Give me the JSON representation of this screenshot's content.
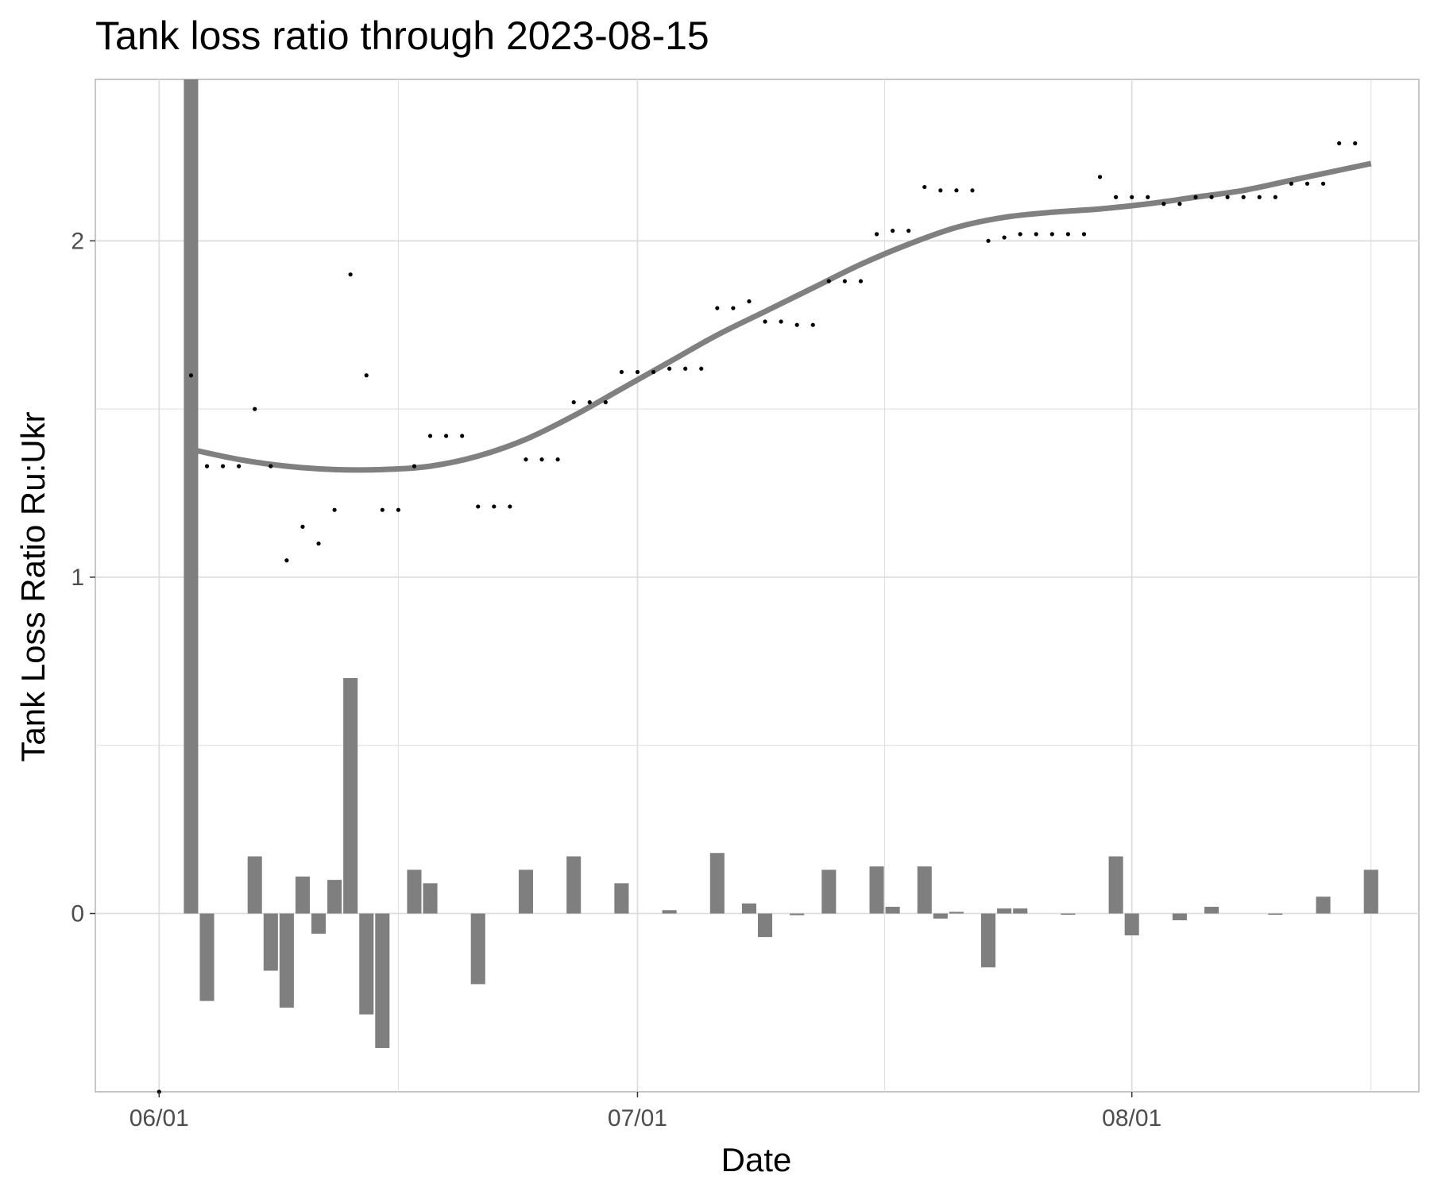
{
  "chart_data": {
    "type": "bar",
    "title": "Tank loss ratio through 2023-08-15",
    "xlabel": "Date",
    "ylabel": "Tank Loss Ratio Ru:Ukr",
    "x_axis": {
      "type": "date",
      "range": [
        "2023-05-28",
        "2023-08-19"
      ],
      "ticks": [
        {
          "date": "2023-06-01",
          "label": "06/01"
        },
        {
          "date": "2023-07-01",
          "label": "07/01"
        },
        {
          "date": "2023-08-01",
          "label": "08/01"
        }
      ]
    },
    "y_axis": {
      "range": [
        -0.53,
        2.48
      ],
      "ticks": [
        {
          "value": 0,
          "label": "0"
        },
        {
          "value": 1,
          "label": "1"
        },
        {
          "value": 2,
          "label": "2"
        }
      ],
      "minor_ticks": [
        0.5,
        1.5
      ]
    },
    "grid": true,
    "legend": "none",
    "colors": {
      "bars": "#7f7f7f",
      "smooth_line": "#808080",
      "points": "#000000",
      "grid": "#dedede",
      "panel_border": "#b3b3b3"
    },
    "series": [
      {
        "type": "point",
        "x": [
          "2023-06-01",
          "2023-06-03",
          "2023-06-04",
          "2023-06-05",
          "2023-06-06",
          "2023-06-07",
          "2023-06-08",
          "2023-06-09",
          "2023-06-10",
          "2023-06-11",
          "2023-06-12",
          "2023-06-13",
          "2023-06-14",
          "2023-06-15",
          "2023-06-16",
          "2023-06-17",
          "2023-06-18",
          "2023-06-19",
          "2023-06-20",
          "2023-06-21",
          "2023-06-22",
          "2023-06-23",
          "2023-06-24",
          "2023-06-25",
          "2023-06-26",
          "2023-06-27",
          "2023-06-28",
          "2023-06-29",
          "2023-06-30",
          "2023-07-01",
          "2023-07-02",
          "2023-07-03",
          "2023-07-04",
          "2023-07-05",
          "2023-07-06",
          "2023-07-07",
          "2023-07-08",
          "2023-07-09",
          "2023-07-10",
          "2023-07-11",
          "2023-07-12",
          "2023-07-13",
          "2023-07-14",
          "2023-07-15",
          "2023-07-16",
          "2023-07-17",
          "2023-07-18",
          "2023-07-19",
          "2023-07-20",
          "2023-07-21",
          "2023-07-22",
          "2023-07-23",
          "2023-07-24",
          "2023-07-25",
          "2023-07-26",
          "2023-07-27",
          "2023-07-28",
          "2023-07-29",
          "2023-07-30",
          "2023-07-31",
          "2023-08-01",
          "2023-08-02",
          "2023-08-03",
          "2023-08-04",
          "2023-08-05",
          "2023-08-06",
          "2023-08-07",
          "2023-08-08",
          "2023-08-09",
          "2023-08-10",
          "2023-08-11",
          "2023-08-12",
          "2023-08-13",
          "2023-08-14",
          "2023-08-15"
        ],
        "y": [
          -0.53,
          1.6,
          1.33,
          1.33,
          1.33,
          1.5,
          1.33,
          1.05,
          1.15,
          1.1,
          1.2,
          1.9,
          1.6,
          1.2,
          1.2,
          1.33,
          1.42,
          1.42,
          1.42,
          1.21,
          1.21,
          1.21,
          1.35,
          1.35,
          1.35,
          1.52,
          1.52,
          1.52,
          1.61,
          1.61,
          1.61,
          1.62,
          1.62,
          1.62,
          1.8,
          1.8,
          1.82,
          1.76,
          1.76,
          1.75,
          1.75,
          1.88,
          1.88,
          1.88,
          2.02,
          2.03,
          2.03,
          2.16,
          2.15,
          2.15,
          2.15,
          2.0,
          2.01,
          2.02,
          2.02,
          2.02,
          2.02,
          2.02,
          2.19,
          2.13,
          2.13,
          2.13,
          2.11,
          2.11,
          2.13,
          2.13,
          2.13,
          2.13,
          2.13,
          2.13,
          2.17,
          2.17,
          2.17,
          2.29,
          2.29
        ]
      },
      {
        "type": "bar",
        "x": [
          "2023-06-03",
          "2023-06-04",
          "2023-06-07",
          "2023-06-08",
          "2023-06-09",
          "2023-06-10",
          "2023-06-11",
          "2023-06-12",
          "2023-06-13",
          "2023-06-14",
          "2023-06-15",
          "2023-06-17",
          "2023-06-18",
          "2023-06-21",
          "2023-06-24",
          "2023-06-27",
          "2023-06-30",
          "2023-07-03",
          "2023-07-06",
          "2023-07-08",
          "2023-07-09",
          "2023-07-11",
          "2023-07-13",
          "2023-07-16",
          "2023-07-17",
          "2023-07-19",
          "2023-07-20",
          "2023-07-21",
          "2023-07-23",
          "2023-07-24",
          "2023-07-25",
          "2023-07-28",
          "2023-07-31",
          "2023-08-01",
          "2023-08-04",
          "2023-08-06",
          "2023-08-10",
          "2023-08-13",
          "2023-08-16"
        ],
        "y": [
          2.48,
          -0.26,
          0.17,
          -0.17,
          -0.28,
          0.11,
          -0.06,
          0.1,
          0.7,
          -0.3,
          -0.4,
          0.13,
          0.09,
          -0.21,
          0.13,
          0.17,
          0.09,
          0.01,
          0.18,
          0.03,
          -0.07,
          -0.005,
          0.13,
          0.14,
          0.02,
          0.14,
          -0.015,
          0.005,
          -0.16,
          0.015,
          0.015,
          -0.003,
          0.17,
          -0.065,
          -0.02,
          0.02,
          -0.003,
          0.05,
          0.13
        ]
      },
      {
        "type": "smooth",
        "x": [
          "2023-06-03",
          "2023-06-06",
          "2023-06-09",
          "2023-06-12",
          "2023-06-15",
          "2023-06-18",
          "2023-06-21",
          "2023-06-24",
          "2023-06-27",
          "2023-06-30",
          "2023-07-03",
          "2023-07-06",
          "2023-07-09",
          "2023-07-12",
          "2023-07-15",
          "2023-07-18",
          "2023-07-21",
          "2023-07-24",
          "2023-07-27",
          "2023-07-30",
          "2023-08-02",
          "2023-08-05",
          "2023-08-08",
          "2023-08-11",
          "2023-08-14",
          "2023-08-16"
        ],
        "y": [
          1.38,
          1.35,
          1.33,
          1.32,
          1.32,
          1.33,
          1.36,
          1.41,
          1.48,
          1.56,
          1.64,
          1.72,
          1.79,
          1.86,
          1.93,
          1.99,
          2.04,
          2.07,
          2.085,
          2.095,
          2.11,
          2.13,
          2.15,
          2.18,
          2.21,
          2.23
        ]
      }
    ]
  }
}
